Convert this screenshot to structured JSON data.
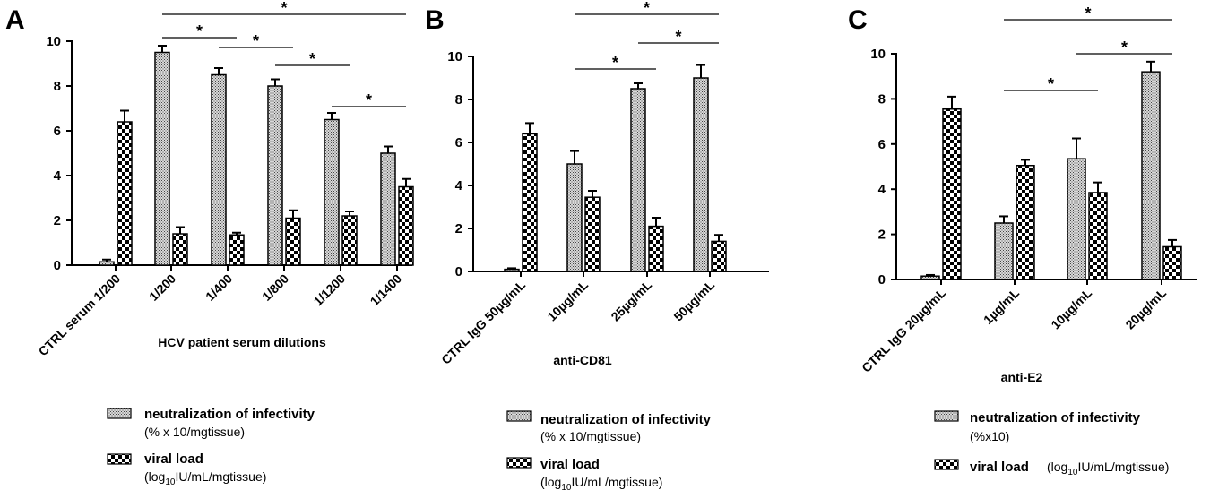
{
  "chart_data": [
    {
      "type": "bar",
      "panel_label": "A",
      "xlabel": "HCV patient serum dilutions",
      "ylabel": "",
      "ylim": [
        0,
        10
      ],
      "yticks": [
        0,
        2,
        4,
        6,
        8,
        10
      ],
      "categories": [
        "CTRL serum 1/200",
        "1/200",
        "1/400",
        "1/800",
        "1/1200",
        "1/1400"
      ],
      "series": [
        {
          "key": "neutralization",
          "values": [
            0.15,
            9.5,
            8.5,
            8.0,
            6.5,
            5.0
          ],
          "errors": [
            0.1,
            0.3,
            0.3,
            0.3,
            0.3,
            0.3
          ]
        },
        {
          "key": "viral_load",
          "values": [
            6.4,
            1.4,
            1.35,
            2.1,
            2.2,
            3.5
          ],
          "errors": [
            0.5,
            0.3,
            0.1,
            0.35,
            0.2,
            0.35
          ]
        }
      ],
      "significance": [
        {
          "from": 1,
          "to": 5,
          "label": "*"
        },
        {
          "from": 1,
          "to": 2,
          "label": "*"
        },
        {
          "from": 3,
          "to": 4,
          "label": "*"
        },
        {
          "from": 2,
          "to": 3,
          "label": "*"
        },
        {
          "from": 4,
          "to": 5,
          "label": "*"
        }
      ],
      "legend": [
        {
          "key": "neutralization",
          "label": "neutralization of  infectivity",
          "sub": "(% x 10/mgtissue)"
        },
        {
          "key": "viral_load",
          "label": "viral load",
          "sub_pre": "(log",
          "sub_sub": "10",
          "sub_post": "IU/mL/mgtissue)"
        }
      ]
    },
    {
      "type": "bar",
      "panel_label": "B",
      "xlabel": "anti-CD81",
      "ylabel": "",
      "ylim": [
        0,
        10
      ],
      "yticks": [
        0,
        2,
        4,
        6,
        8,
        10
      ],
      "categories": [
        "CTRL IgG 50µg/mL",
        "10µg/mL",
        "25µg/mL",
        "50µg/mL"
      ],
      "series": [
        {
          "key": "neutralization",
          "values": [
            0.1,
            5.0,
            8.5,
            9.0
          ],
          "errors": [
            0.05,
            0.6,
            0.25,
            0.6
          ]
        },
        {
          "key": "viral_load",
          "values": [
            6.4,
            3.45,
            2.1,
            1.4
          ],
          "errors": [
            0.5,
            0.3,
            0.4,
            0.3
          ]
        }
      ],
      "significance": [
        {
          "from": 1,
          "to": 3,
          "label": "*"
        },
        {
          "from": 2,
          "to": 3,
          "label": "*"
        },
        {
          "from": 1,
          "to": 2,
          "label": "*"
        }
      ],
      "legend": [
        {
          "key": "neutralization",
          "label": "neutralization of infectivity",
          "sub": "(% x 10/mgtissue)"
        },
        {
          "key": "viral_load",
          "label": "viral load",
          "sub_pre": "(log",
          "sub_sub": "10",
          "sub_post": "IU/mL/mgtissue)"
        }
      ]
    },
    {
      "type": "bar",
      "panel_label": "C",
      "xlabel": "anti-E2",
      "ylabel": "",
      "ylim": [
        0,
        10
      ],
      "yticks": [
        0,
        2,
        4,
        6,
        8,
        10
      ],
      "categories": [
        "CTRL IgG 20µg/mL",
        "1µg/mL",
        "10µg/mL",
        "20µg/mL"
      ],
      "series": [
        {
          "key": "neutralization",
          "values": [
            0.15,
            2.5,
            5.35,
            9.2
          ],
          "errors": [
            0.05,
            0.3,
            0.9,
            0.45
          ]
        },
        {
          "key": "viral_load",
          "values": [
            7.55,
            5.05,
            3.85,
            1.45
          ],
          "errors": [
            0.55,
            0.25,
            0.45,
            0.3
          ]
        }
      ],
      "significance": [
        {
          "from": 1,
          "to": 3,
          "label": "*"
        },
        {
          "from": 2,
          "to": 3,
          "label": "*"
        },
        {
          "from": 1,
          "to": 2,
          "label": "*"
        }
      ],
      "legend": [
        {
          "key": "neutralization",
          "label": "neutralization of infectivity",
          "sub": "(%x10)"
        },
        {
          "key": "viral_load",
          "label": "viral load",
          "sub_pre": "(log",
          "sub_sub": "10",
          "sub_post": "IU/mL/mgtissue)"
        }
      ]
    }
  ]
}
